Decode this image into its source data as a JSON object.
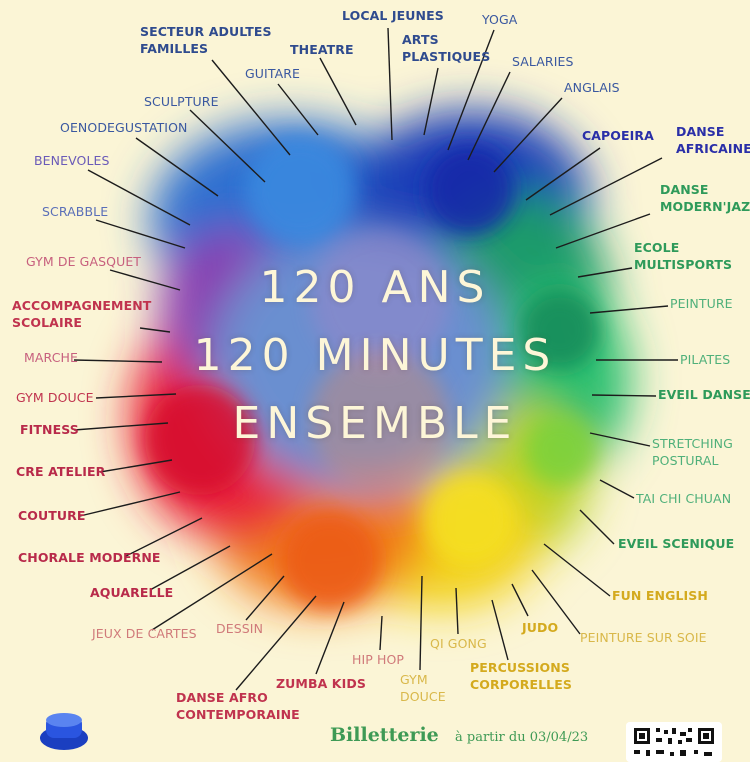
{
  "title": {
    "line1": "120 ANS",
    "line2": "120 MINUTES",
    "line3": "ENSEMBLE"
  },
  "footer": {
    "billetterie": "Billetterie",
    "date": "à partir du 03/04/23"
  },
  "labels": [
    {
      "id": "secteur-adultes",
      "lines": [
        "SECTEUR ADULTES",
        "FAMILLES"
      ],
      "color": "#2f4b8e"
    },
    {
      "id": "local-jeunes",
      "lines": [
        "LOCAL JEUNES"
      ],
      "color": "#2f4b8e"
    },
    {
      "id": "yoga",
      "lines": [
        "YOGA"
      ],
      "color": "#3a58a0"
    },
    {
      "id": "arts-plastiques",
      "lines": [
        "ARTS",
        "PLASTIQUES"
      ],
      "color": "#2f4b8e"
    },
    {
      "id": "theatre",
      "lines": [
        "THEATRE"
      ],
      "color": "#2f4b8e"
    },
    {
      "id": "guitare",
      "lines": [
        "GUITARE"
      ],
      "color": "#3a58a0"
    },
    {
      "id": "salaries",
      "lines": [
        "SALARIES"
      ],
      "color": "#3a58a0"
    },
    {
      "id": "anglais",
      "lines": [
        "ANGLAIS"
      ],
      "color": "#3a58a0"
    },
    {
      "id": "sculpture",
      "lines": [
        "SCULPTURE"
      ],
      "color": "#3a58a0"
    },
    {
      "id": "oenodegustation",
      "lines": [
        "OENODEGUSTATION"
      ],
      "color": "#3a58a0"
    },
    {
      "id": "capoeira",
      "lines": [
        "CAPOEIRA"
      ],
      "color": "#2a2fa8"
    },
    {
      "id": "danse-africaine",
      "lines": [
        "DANSE",
        "AFRICAINE"
      ],
      "color": "#2a2fa8"
    },
    {
      "id": "benevoles",
      "lines": [
        "BENEVOLES"
      ],
      "color": "#6a5ab8"
    },
    {
      "id": "scrabble",
      "lines": [
        "SCRABBLE"
      ],
      "color": "#5a6fb8"
    },
    {
      "id": "danse-modern-jazz",
      "lines": [
        "DANSE",
        "MODERN'JAZZ"
      ],
      "color": "#2e9a5a"
    },
    {
      "id": "gym-de-gasquet",
      "lines": [
        "GYM DE GASQUET"
      ],
      "color": "#c7607e"
    },
    {
      "id": "ecole-multisports",
      "lines": [
        "ECOLE",
        "MULTISPORTS"
      ],
      "color": "#2e9a5a"
    },
    {
      "id": "accompagnement-scolaire",
      "lines": [
        "ACCOMPAGNEMENT",
        "SCOLAIRE"
      ],
      "color": "#c0334e"
    },
    {
      "id": "peinture",
      "lines": [
        "PEINTURE"
      ],
      "color": "#4fb07a"
    },
    {
      "id": "marche",
      "lines": [
        "MARCHE"
      ],
      "color": "#c7607e"
    },
    {
      "id": "pilates",
      "lines": [
        "PILATES"
      ],
      "color": "#4fb07a"
    },
    {
      "id": "gym-douce-left",
      "lines": [
        "GYM DOUCE"
      ],
      "color": "#c0334e"
    },
    {
      "id": "eveil-danse",
      "lines": [
        "EVEIL DANSE"
      ],
      "color": "#2e9a5a"
    },
    {
      "id": "fitness",
      "lines": [
        "FITNESS"
      ],
      "color": "#b82a4a"
    },
    {
      "id": "stretching",
      "lines": [
        "STRETCHING",
        "POSTURAL"
      ],
      "color": "#4fb07a"
    },
    {
      "id": "cre-atelier",
      "lines": [
        "CRE ATELIER"
      ],
      "color": "#b82a4a"
    },
    {
      "id": "tai-chi",
      "lines": [
        "TAI CHI CHUAN"
      ],
      "color": "#4fb07a"
    },
    {
      "id": "couture",
      "lines": [
        "COUTURE"
      ],
      "color": "#b82a4a"
    },
    {
      "id": "eveil-scenique",
      "lines": [
        "EVEIL SCENIQUE"
      ],
      "color": "#2e9a5a"
    },
    {
      "id": "chorale-moderne",
      "lines": [
        "CHORALE MODERNE"
      ],
      "color": "#b82a4a"
    },
    {
      "id": "fun-english",
      "lines": [
        "FUN ENGLISH"
      ],
      "color": "#d4aa1e"
    },
    {
      "id": "aquarelle",
      "lines": [
        "AQUARELLE"
      ],
      "color": "#b82a4a"
    },
    {
      "id": "peinture-sur-soie",
      "lines": [
        "PEINTURE SUR SOIE"
      ],
      "color": "#d9b84a"
    },
    {
      "id": "jeux-de-cartes",
      "lines": [
        "JEUX DE CARTES"
      ],
      "color": "#d07a7a"
    },
    {
      "id": "dessin",
      "lines": [
        "DESSIN"
      ],
      "color": "#d07a7a"
    },
    {
      "id": "judo",
      "lines": [
        "JUDO"
      ],
      "color": "#d4aa1e"
    },
    {
      "id": "qi-gong",
      "lines": [
        "QI GONG"
      ],
      "color": "#d9b84a"
    },
    {
      "id": "percussions",
      "lines": [
        "PERCUSSIONS",
        "CORPORELLES"
      ],
      "color": "#d4aa1e"
    },
    {
      "id": "hip-hop",
      "lines": [
        "HIP HOP"
      ],
      "color": "#d07a7a"
    },
    {
      "id": "gym-douce-bottom",
      "lines": [
        "GYM",
        "DOUCE"
      ],
      "color": "#d9b84a"
    },
    {
      "id": "zumba-kids",
      "lines": [
        "ZUMBA KIDS"
      ],
      "color": "#c0334e"
    },
    {
      "id": "danse-afro",
      "lines": [
        "DANSE AFRO",
        "CONTEMPORAINE"
      ],
      "color": "#c0334e"
    }
  ]
}
